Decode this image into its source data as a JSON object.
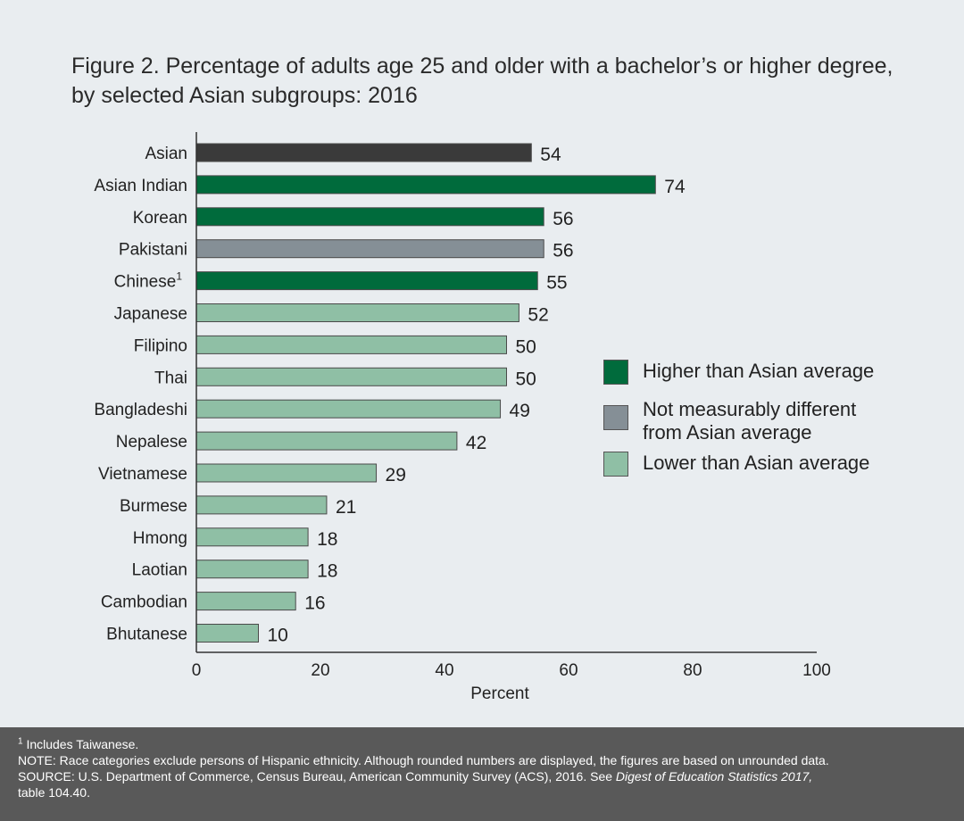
{
  "title_line1": "Figure 2. Percentage of adults age 25 and older with a bachelor’s or higher degree,",
  "title_line2": "by selected Asian subgroups: 2016",
  "chart_data": {
    "type": "bar",
    "orientation": "horizontal",
    "title": "Figure 2. Percentage of adults age 25 and older with a bachelor’s or higher degree, by selected Asian subgroups: 2016",
    "xlabel": "Percent",
    "ylabel": "",
    "xlim": [
      0,
      100
    ],
    "xticks": [
      "0",
      "20",
      "40",
      "60",
      "80",
      "100"
    ],
    "grid": false,
    "legend_placement": "right",
    "categories": [
      "Asian",
      "Asian Indian",
      "Korean",
      "Pakistani",
      "Chinese",
      "Japanese",
      "Filipino",
      "Thai",
      "Bangladeshi",
      "Nepalese",
      "Vietnamese",
      "Burmese",
      "Hmong",
      "Laotian",
      "Cambodian",
      "Bhutanese"
    ],
    "category_superscripts": {
      "Chinese": "1"
    },
    "values": [
      54,
      74,
      56,
      56,
      55,
      52,
      50,
      50,
      49,
      42,
      29,
      21,
      18,
      18,
      16,
      10
    ],
    "value_labels": [
      "54",
      "74",
      "56",
      "56",
      "55",
      "52",
      "50",
      "50",
      "49",
      "42",
      "29",
      "21",
      "18",
      "18",
      "16",
      "10"
    ],
    "groups": [
      "reference",
      "higher",
      "higher",
      "not_different",
      "higher",
      "lower",
      "lower",
      "lower",
      "lower",
      "lower",
      "lower",
      "lower",
      "lower",
      "lower",
      "lower",
      "lower"
    ],
    "colors": {
      "reference": "#3a3a3a",
      "higher": "#006b3c",
      "not_different": "#858f96",
      "lower": "#8fbfa5"
    },
    "legend": [
      {
        "group": "higher",
        "label": "Higher than Asian average"
      },
      {
        "group": "not_different",
        "label": "Not measurably different from Asian average"
      },
      {
        "group": "lower",
        "label": "Lower than Asian average"
      }
    ]
  },
  "footer": {
    "footnote_marker": "1",
    "footnote_text": "Includes Taiwanese.",
    "note": "NOTE: Race categories exclude persons of Hispanic ethnicity. Although rounded numbers are displayed, the figures are based on unrounded data.",
    "source_prefix": "SOURCE: U.S. Department of Commerce, Census Bureau, American Community Survey (ACS), 2016. See ",
    "source_title": "Digest of Education Statistics 2017,",
    "source_suffix": "table 104.40."
  }
}
